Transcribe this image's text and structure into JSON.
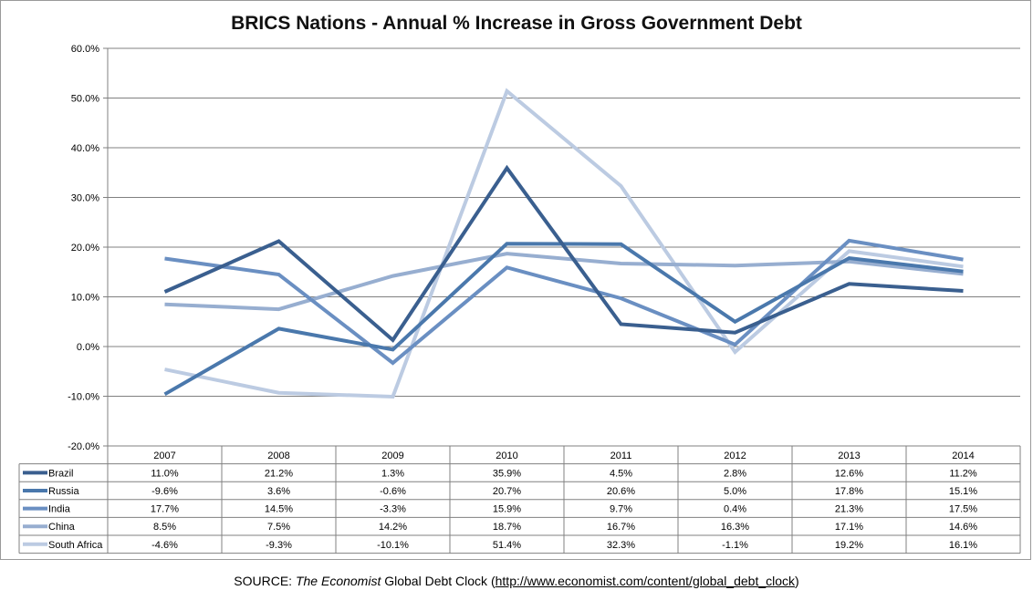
{
  "chart_data": {
    "type": "line",
    "title": "BRICS Nations - Annual % Increase in Gross Government Debt",
    "categories": [
      "2007",
      "2008",
      "2009",
      "2010",
      "2011",
      "2012",
      "2013",
      "2014"
    ],
    "ylim": [
      -20,
      60
    ],
    "yticks": [
      60,
      50,
      40,
      30,
      20,
      10,
      0,
      -10,
      -20
    ],
    "ytick_labels": [
      "60.0%",
      "50.0%",
      "40.0%",
      "30.0%",
      "20.0%",
      "10.0%",
      "0.0%",
      "-10.0%",
      "-20.0%"
    ],
    "grid": true,
    "legend": "data-table",
    "series": [
      {
        "name": "Brazil",
        "color": "#3a5f8f",
        "values": [
          11.0,
          21.2,
          1.3,
          35.9,
          4.5,
          2.8,
          12.6,
          11.2
        ],
        "labels": [
          "11.0%",
          "21.2%",
          "1.3%",
          "35.9%",
          "4.5%",
          "2.8%",
          "12.6%",
          "11.2%"
        ]
      },
      {
        "name": "Russia",
        "color": "#4a78ac",
        "values": [
          -9.6,
          3.6,
          -0.6,
          20.7,
          20.6,
          5.0,
          17.8,
          15.1
        ],
        "labels": [
          "-9.6%",
          "3.6%",
          "-0.6%",
          "20.7%",
          "20.6%",
          "5.0%",
          "17.8%",
          "15.1%"
        ]
      },
      {
        "name": "India",
        "color": "#6a8fc2",
        "values": [
          17.7,
          14.5,
          -3.3,
          15.9,
          9.7,
          0.4,
          21.3,
          17.5
        ],
        "labels": [
          "17.7%",
          "14.5%",
          "-3.3%",
          "15.9%",
          "9.7%",
          "0.4%",
          "21.3%",
          "17.5%"
        ]
      },
      {
        "name": "China",
        "color": "#97aed0",
        "values": [
          8.5,
          7.5,
          14.2,
          18.7,
          16.7,
          16.3,
          17.1,
          14.6
        ],
        "labels": [
          "8.5%",
          "7.5%",
          "14.2%",
          "18.7%",
          "16.7%",
          "16.3%",
          "17.1%",
          "14.6%"
        ]
      },
      {
        "name": "South Africa",
        "color": "#bccbe2",
        "values": [
          -4.6,
          -9.3,
          -10.1,
          51.4,
          32.3,
          -1.1,
          19.2,
          16.1
        ],
        "labels": [
          "-4.6%",
          "-9.3%",
          "-10.1%",
          "51.4%",
          "32.3%",
          "-1.1%",
          "19.2%",
          "16.1%"
        ]
      }
    ]
  },
  "source": {
    "prefix": "SOURCE: ",
    "publication": "The Economist",
    "middle": " Global Debt Clock (",
    "url": "http://www.economist.com/content/global_debt_clock",
    "suffix": ")"
  }
}
